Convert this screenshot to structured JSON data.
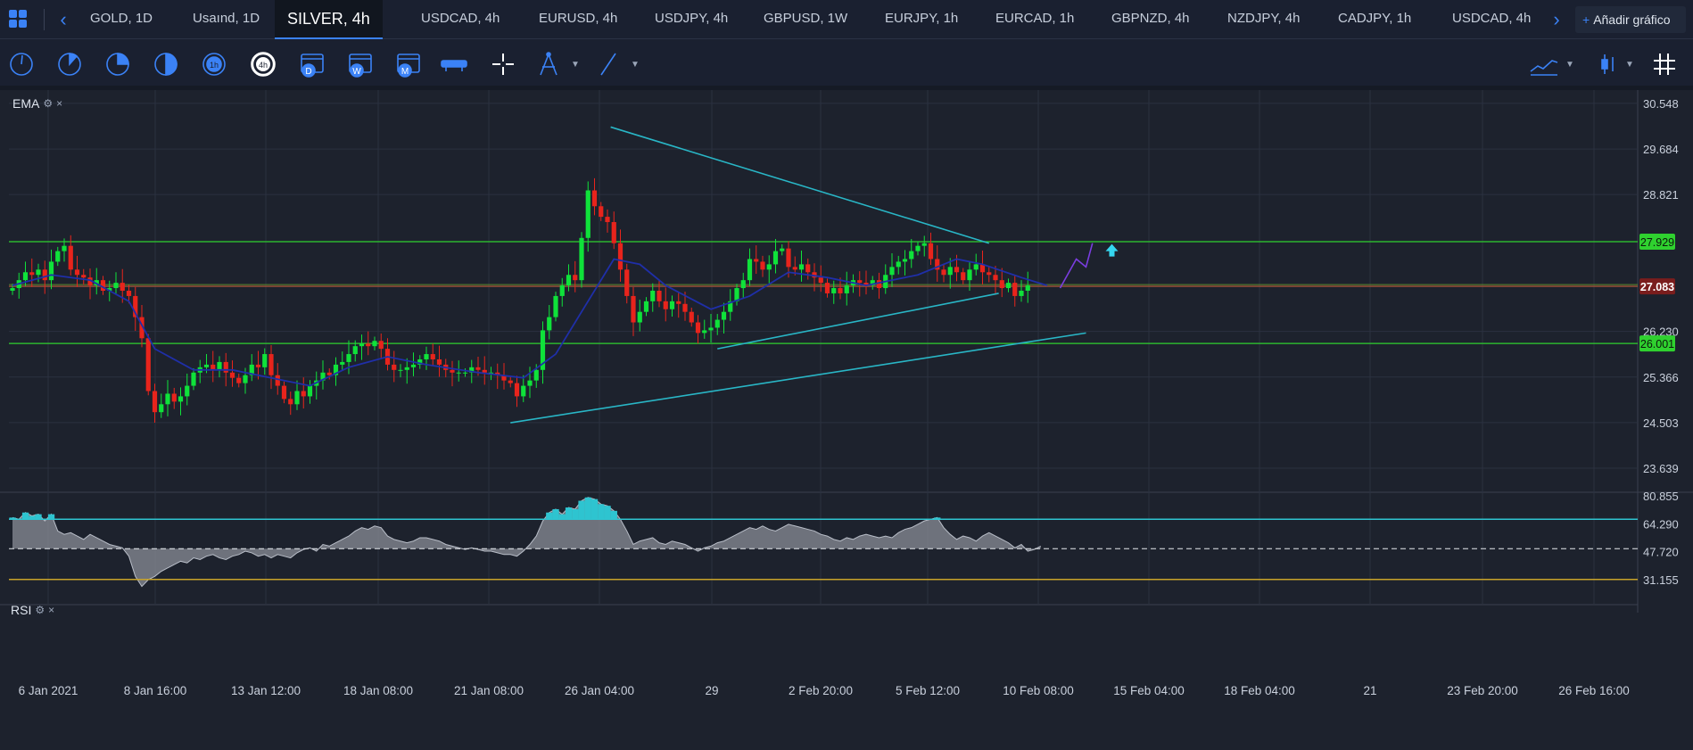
{
  "tabs": {
    "items": [
      {
        "label": "GOLD, 1D"
      },
      {
        "label": "Usaınd, 1D"
      },
      {
        "label": "SILVER, 4h"
      },
      {
        "label": "USDCAD, 4h"
      },
      {
        "label": "EURUSD, 4h"
      },
      {
        "label": "USDJPY, 4h"
      },
      {
        "label": "GBPUSD, 1W"
      },
      {
        "label": "EURJPY, 1h"
      },
      {
        "label": "EURCAD, 1h"
      },
      {
        "label": "GBPNZD, 4h"
      },
      {
        "label": "NZDJPY, 4h"
      },
      {
        "label": "CADJPY, 1h"
      },
      {
        "label": "USDCAD, 4h"
      }
    ],
    "add_chart_label": "Añadir gráfico",
    "add_chart_plus": "+"
  },
  "toolbar": {
    "icons": [
      "clock-1m-icon",
      "clock-5m-icon",
      "clock-15m-icon",
      "clock-30m-icon",
      "clock-1h-icon",
      "clock-4h-icon",
      "calendar-day-icon",
      "calendar-week-icon",
      "calendar-month-icon",
      "range-icon",
      "crosshair-icon",
      "compass-tool-icon",
      "trend-line-tool-icon",
      "chart-type-icon",
      "indicators-icon",
      "grid-icon"
    ],
    "day_letter": "D",
    "week_letter": "W",
    "month_letter": "M",
    "four_h": "4h",
    "one_h": "1h"
  },
  "indicators": {
    "ema": {
      "label": "EMA",
      "close": "×"
    },
    "rsi": {
      "label": "RSI",
      "close": "×"
    }
  },
  "colors": {
    "bull": "#0fe23a",
    "bear": "#e8241c",
    "ema": "#1f2fa8",
    "trendline": "#29b6c6",
    "hline": "#2fd12f",
    "price_badge_bg": "#7a1d1d",
    "rsi_area": "#8a8e97",
    "rsi_upper": "#2ec4d0",
    "rsi_lower": "#c9a42a",
    "forecast": "#7a3de0",
    "signal_arrow": "#35d6ef"
  },
  "chart_data": {
    "type": "candlestick",
    "symbol": "SILVER, 4h",
    "y_axis_labels": [
      "30.548",
      "29.684",
      "28.821",
      "27.929",
      "27.083",
      "26.230",
      "26.001",
      "25.366",
      "24.503",
      "23.639"
    ],
    "ylim": [
      23.2,
      30.8
    ],
    "horizontal_levels": [
      27.929,
      27.083,
      26.001
    ],
    "current_price": "27.083",
    "x_axis_labels": [
      "6 Jan 2021",
      "8 Jan 16:00",
      "13 Jan 12:00",
      "18 Jan 08:00",
      "21 Jan 08:00",
      "26 Jan 04:00",
      "29",
      "2 Feb 20:00",
      "5 Feb 12:00",
      "10 Feb 08:00",
      "15 Feb 04:00",
      "18 Feb 04:00",
      "21",
      "23 Feb 20:00",
      "26 Feb 16:00"
    ],
    "closes": [
      27.05,
      27.2,
      27.35,
      27.3,
      27.4,
      27.2,
      27.55,
      27.75,
      27.85,
      27.4,
      27.3,
      27.25,
      27.1,
      27.2,
      27.0,
      27.05,
      27.15,
      27.0,
      26.9,
      26.5,
      26.1,
      25.1,
      24.7,
      24.85,
      25.05,
      24.9,
      25.0,
      25.2,
      25.45,
      25.55,
      25.6,
      25.5,
      25.65,
      25.45,
      25.35,
      25.25,
      25.4,
      25.6,
      25.55,
      25.8,
      25.4,
      25.2,
      24.95,
      24.85,
      25.1,
      25.0,
      25.2,
      25.3,
      25.45,
      25.4,
      25.6,
      25.65,
      25.8,
      25.95,
      26.0,
      25.95,
      26.05,
      25.9,
      25.6,
      25.5,
      25.5,
      25.55,
      25.6,
      25.7,
      25.8,
      25.7,
      25.6,
      25.5,
      25.45,
      25.45,
      25.45,
      25.55,
      25.5,
      25.45,
      25.45,
      25.4,
      25.3,
      25.25,
      25.0,
      25.2,
      25.3,
      25.5,
      26.25,
      26.5,
      26.9,
      27.1,
      27.3,
      27.2,
      28.0,
      28.9,
      28.6,
      28.4,
      28.3,
      27.9,
      27.4,
      26.9,
      26.4,
      26.6,
      26.8,
      27.0,
      26.8,
      26.65,
      26.8,
      26.75,
      26.6,
      26.4,
      26.2,
      26.25,
      26.3,
      26.45,
      26.6,
      26.8,
      27.05,
      27.2,
      27.6,
      27.55,
      27.4,
      27.5,
      27.75,
      27.8,
      27.45,
      27.4,
      27.5,
      27.35,
      27.25,
      27.15,
      26.95,
      27.05,
      26.95,
      27.1,
      27.2,
      27.15,
      27.1,
      27.2,
      27.05,
      27.3,
      27.45,
      27.55,
      27.6,
      27.75,
      27.85,
      27.9,
      27.6,
      27.4,
      27.3,
      27.45,
      27.35,
      27.2,
      27.4,
      27.5,
      27.35,
      27.3,
      27.2,
      27.05,
      27.15,
      26.9,
      27.0,
      27.1
    ],
    "ema_points": [
      [
        0,
        27.1
      ],
      [
        6,
        27.3
      ],
      [
        12,
        27.2
      ],
      [
        18,
        26.8
      ],
      [
        22,
        25.9
      ],
      [
        28,
        25.5
      ],
      [
        34,
        25.5
      ],
      [
        40,
        25.35
      ],
      [
        46,
        25.2
      ],
      [
        52,
        25.55
      ],
      [
        58,
        25.75
      ],
      [
        64,
        25.6
      ],
      [
        72,
        25.45
      ],
      [
        79,
        25.35
      ],
      [
        84,
        25.8
      ],
      [
        89,
        26.8
      ],
      [
        93,
        27.6
      ],
      [
        97,
        27.5
      ],
      [
        101,
        27.1
      ],
      [
        108,
        26.65
      ],
      [
        114,
        26.9
      ],
      [
        120,
        27.35
      ],
      [
        126,
        27.25
      ],
      [
        132,
        27.1
      ],
      [
        140,
        27.3
      ],
      [
        146,
        27.6
      ],
      [
        150,
        27.5
      ],
      [
        156,
        27.25
      ],
      [
        160,
        27.1
      ]
    ],
    "trend_lines": [
      {
        "from": [
          92.5,
          30.1
        ],
        "to": [
          151,
          27.9
        ]
      },
      {
        "from": [
          109,
          25.9
        ],
        "to": [
          152.5,
          26.95
        ]
      },
      {
        "from": [
          77,
          24.5
        ],
        "to": [
          166,
          26.2
        ]
      }
    ],
    "forecast": [
      [
        162,
        27.05
      ],
      [
        164.5,
        27.6
      ],
      [
        166,
        27.45
      ],
      [
        167,
        27.9
      ]
    ],
    "rsi": {
      "y_axis_labels": [
        "80.855",
        "64.290",
        "47.720",
        "31.155"
      ],
      "ylim": [
        22,
        82
      ],
      "upper_band": 67,
      "lower_band": 31.155,
      "mid_dashed": 49.5,
      "values": [
        68,
        67,
        71,
        69,
        70,
        66,
        70,
        60,
        58,
        59,
        57,
        55,
        58,
        56,
        54,
        52,
        51,
        50,
        45,
        33,
        27,
        31,
        33,
        36,
        38,
        40,
        42,
        41,
        44,
        43,
        45,
        46,
        44,
        43,
        45,
        46,
        48,
        47,
        45,
        46,
        44,
        46,
        45,
        44,
        47,
        49,
        50,
        48,
        52,
        51,
        53,
        55,
        57,
        60,
        62,
        61,
        63,
        62,
        57,
        55,
        54,
        53,
        54,
        56,
        56,
        55,
        54,
        52,
        51,
        50,
        49,
        50,
        49,
        48,
        48,
        47,
        46,
        46,
        45,
        48,
        52,
        57,
        66,
        71,
        73,
        70,
        74,
        73,
        78,
        80,
        79,
        76,
        75,
        72,
        67,
        60,
        52,
        54,
        55,
        56,
        53,
        52,
        54,
        53,
        52,
        50,
        48,
        50,
        51,
        53,
        54,
        56,
        58,
        60,
        62,
        61,
        63,
        61,
        60,
        62,
        64,
        63,
        62,
        61,
        60,
        58,
        57,
        55,
        54,
        56,
        55,
        57,
        58,
        57,
        56,
        57,
        56,
        59,
        61,
        62,
        64,
        66,
        67,
        68,
        62,
        58,
        55,
        57,
        56,
        54,
        57,
        59,
        57,
        55,
        53,
        50,
        52,
        48,
        49,
        51
      ]
    }
  }
}
